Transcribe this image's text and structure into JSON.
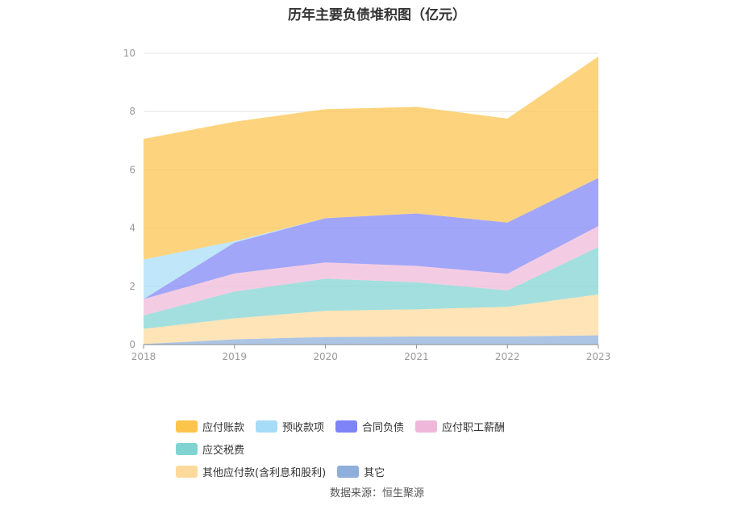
{
  "title": "历年主要负债堆积图（亿元）",
  "source": "数据来源：恒生聚源",
  "chart_data": {
    "type": "area",
    "stacked": true,
    "x": [
      "2018",
      "2019",
      "2020",
      "2021",
      "2022",
      "2023"
    ],
    "ylim": [
      0,
      10
    ],
    "yticks": [
      "0",
      "2",
      "4",
      "6",
      "8",
      "10"
    ],
    "grid": true,
    "legend_position": "bottom",
    "series": [
      {
        "name": "其它",
        "color": "#8eaedb",
        "values": [
          0.02,
          0.18,
          0.26,
          0.28,
          0.28,
          0.32
        ]
      },
      {
        "name": "其他应付款(含利息和股利)",
        "color": "#fdd99b",
        "values": [
          0.52,
          0.72,
          0.9,
          0.93,
          1.02,
          1.4
        ]
      },
      {
        "name": "应交税费",
        "color": "#7fd3d1",
        "values": [
          0.46,
          0.92,
          1.1,
          0.93,
          0.56,
          1.63
        ]
      },
      {
        "name": "应付职工薪酬",
        "color": "#efb8da",
        "values": [
          0.56,
          0.62,
          0.56,
          0.56,
          0.57,
          0.72
        ]
      },
      {
        "name": "合同负债",
        "color": "#7e83f5",
        "values": [
          0.0,
          1.06,
          1.52,
          1.8,
          1.76,
          1.65
        ]
      },
      {
        "name": "预收款项",
        "color": "#a7dcf7",
        "values": [
          1.36,
          0.05,
          0.0,
          0.0,
          0.0,
          0.0
        ]
      },
      {
        "name": "应付账款",
        "color": "#fcc44b",
        "values": [
          4.14,
          4.1,
          3.74,
          3.66,
          3.57,
          4.17
        ]
      }
    ]
  },
  "legend": [
    {
      "label": "应付账款",
      "color": "#fcc44b"
    },
    {
      "label": "预收款项",
      "color": "#a7dcf7"
    },
    {
      "label": "合同负债",
      "color": "#7e83f5"
    },
    {
      "label": "应付职工薪酬",
      "color": "#efb8da"
    },
    {
      "label": "应交税费",
      "color": "#7fd3d1"
    },
    {
      "label": "其他应付款(含利息和股利)",
      "color": "#fdd99b"
    },
    {
      "label": "其它",
      "color": "#8eaedb"
    }
  ]
}
